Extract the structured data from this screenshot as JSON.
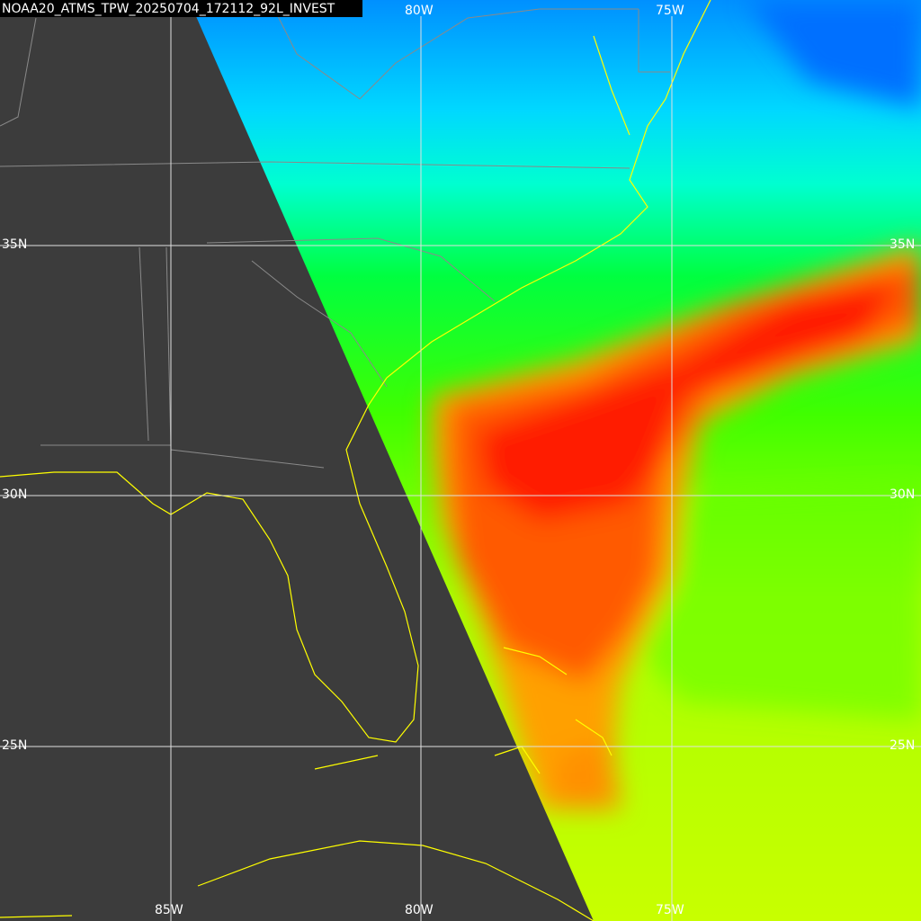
{
  "header": {
    "title": "NOAA20_ATMS_TPW_20250704_172112_92L_INVEST"
  },
  "grid": {
    "longitudes_top": [
      "80W",
      "75W"
    ],
    "longitudes_bottom": [
      "85W",
      "80W",
      "75W"
    ],
    "latitudes": [
      "35N",
      "30N",
      "25N"
    ]
  }
}
